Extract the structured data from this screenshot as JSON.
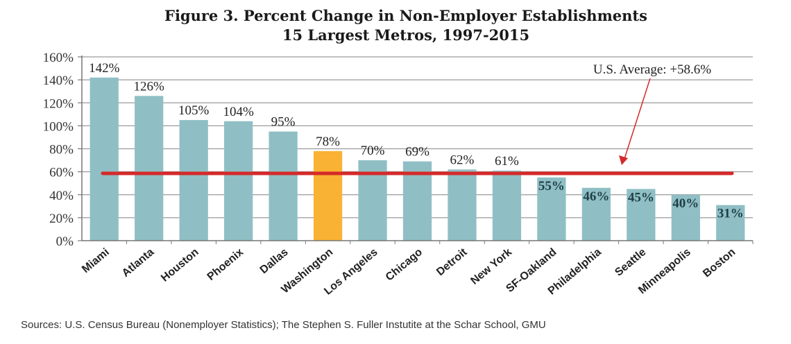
{
  "chart_data": {
    "type": "bar",
    "title": "Figure 3. Percent Change in Non-Employer Establishments",
    "subtitle": "15 Largest Metros, 1997-2015",
    "xlabel": "",
    "ylabel": "",
    "categories": [
      "Miami",
      "Atlanta",
      "Houston",
      "Phoenix",
      "Dallas",
      "Washington",
      "Los Angeles",
      "Chicago",
      "Detroit",
      "New York",
      "SF-Oakland",
      "Philadelphia",
      "Seattle",
      "Minneapolis",
      "Boston"
    ],
    "values": [
      142,
      126,
      105,
      104,
      95,
      78,
      70,
      69,
      62,
      61,
      55,
      46,
      45,
      40,
      31
    ],
    "data_labels": [
      "142%",
      "126%",
      "105%",
      "104%",
      "95%",
      "78%",
      "70%",
      "69%",
      "62%",
      "61%",
      "55%",
      "46%",
      "45%",
      "40%",
      "31%"
    ],
    "highlight_category": "Washington",
    "ylim": [
      0,
      160
    ],
    "yticks": [
      0,
      20,
      40,
      60,
      80,
      100,
      120,
      140,
      160
    ],
    "ytick_labels": [
      "0%",
      "20%",
      "40%",
      "60%",
      "80%",
      "100%",
      "120%",
      "140%",
      "160%"
    ],
    "grid": true,
    "legend": "none",
    "reference_line": {
      "label": "U.S. Average: +58.6%",
      "value": 58.6
    },
    "colors": {
      "bar": "#8fbfc4",
      "highlight": "#f9b233",
      "reference_line": "#d42a2a",
      "grid": "#9a9a9a"
    },
    "source": "Sources:  U.S. Census Bureau (Nonemployer Statistics); The Stephen S. Fuller Instutite at the Schar School, GMU"
  }
}
